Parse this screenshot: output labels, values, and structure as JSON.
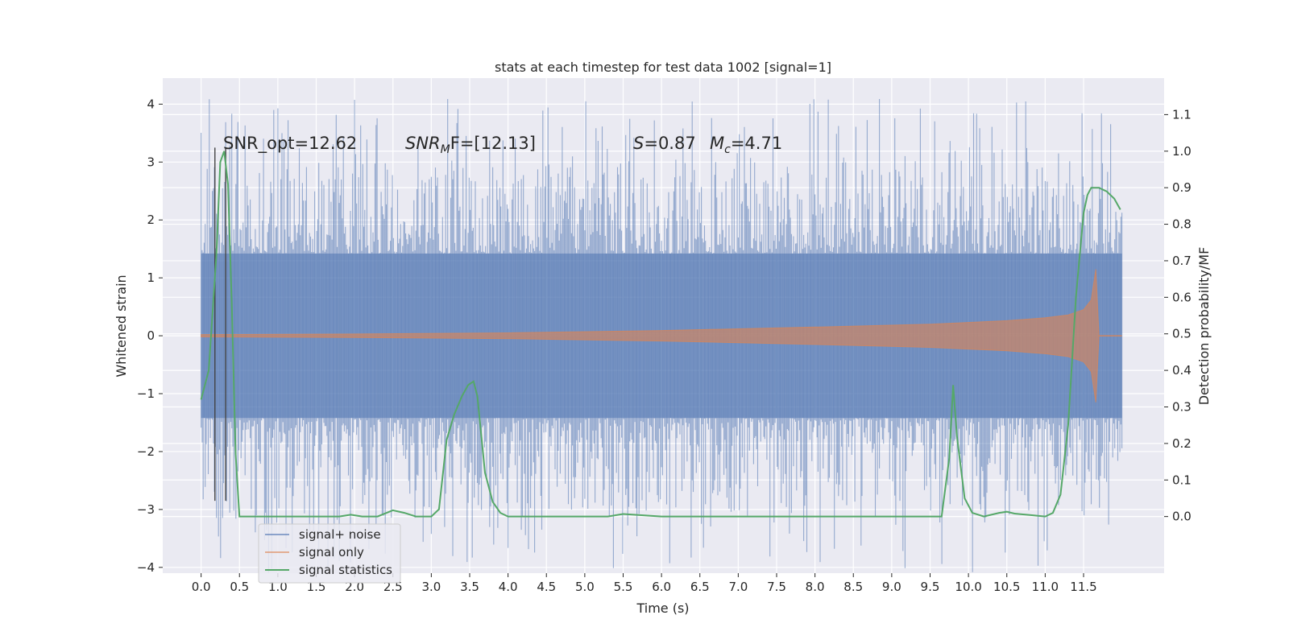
{
  "chart_data": {
    "type": "line",
    "title": "stats at each timestep for test data 1002 [signal=1]",
    "xlabel": "Time (s)",
    "ylabel": "Whitened strain",
    "y2label": "Detection probability/MF",
    "xlim": [
      -0.5,
      12.55
    ],
    "ylim": [
      -4.1,
      4.45
    ],
    "y2lim": [
      -0.155,
      1.2
    ],
    "x_ticks": [
      0.0,
      0.5,
      1.0,
      1.5,
      2.0,
      2.5,
      3.0,
      3.5,
      4.0,
      4.5,
      5.0,
      5.5,
      6.0,
      6.5,
      7.0,
      7.5,
      8.0,
      8.5,
      9.0,
      9.5,
      10.0,
      10.5,
      11.0,
      11.5
    ],
    "x_tick_labels": [
      "0.0",
      "0.5",
      "1.0",
      "1.5",
      "2.0",
      "2.5",
      "3.0",
      "3.5",
      "4.0",
      "4.5",
      "5.0",
      "5.5",
      "6.0",
      "6.5",
      "7.0",
      "7.5",
      "8.0",
      "8.5",
      "9.0",
      "9.5",
      "10.0",
      "10.5",
      "11.0",
      "11.5"
    ],
    "y_ticks": [
      -4,
      -3,
      -2,
      -1,
      0,
      1,
      2,
      3,
      4
    ],
    "y_tick_labels": [
      "−4",
      "−3",
      "−2",
      "−1",
      "0",
      "1",
      "2",
      "3",
      "4"
    ],
    "y2_ticks": [
      0.0,
      0.1,
      0.2,
      0.3,
      0.4,
      0.5,
      0.6,
      0.7,
      0.8,
      0.9,
      1.0,
      1.1
    ],
    "y2_tick_labels": [
      "0.0",
      "0.1",
      "0.2",
      "0.3",
      "0.4",
      "0.5",
      "0.6",
      "0.7",
      "0.8",
      "0.9",
      "1.0",
      "1.1"
    ],
    "grid": true,
    "legend_position": "lower-left",
    "annotations": {
      "snr_opt": "SNR_opt=12.62",
      "snr_mf_main": "SNR",
      "snr_mf_sub": "M",
      "snr_mf_rest": "F=[12.13]",
      "s_main": "S",
      "s_rest": "=0.87",
      "mc_main": "M",
      "mc_sub": "c",
      "mc_rest": "=4.71"
    },
    "vertical_lines_x": [
      0.18,
      0.32
    ],
    "series": [
      {
        "name": "signal+ noise",
        "color": "#4c72b0",
        "style": "band",
        "x_range": [
          0.0,
          12.0
        ],
        "core_amplitude": 1.42,
        "peak_amplitude": 4.1
      },
      {
        "name": "signal only",
        "color": "#dd8452",
        "style": "chirp",
        "x_range": [
          0.0,
          12.0
        ],
        "envelope_x": [
          0.0,
          2.0,
          4.0,
          6.0,
          8.0,
          9.5,
          10.5,
          11.0,
          11.3,
          11.5,
          11.6,
          11.66,
          11.7
        ],
        "envelope_y": [
          0.02,
          0.03,
          0.05,
          0.09,
          0.15,
          0.2,
          0.26,
          0.31,
          0.36,
          0.45,
          0.62,
          1.15,
          0.05
        ]
      },
      {
        "name": "signal statistics",
        "color": "#55a868",
        "style": "line",
        "x": [
          0.0,
          0.1,
          0.2,
          0.25,
          0.3,
          0.35,
          0.4,
          0.45,
          0.5,
          0.55,
          0.6,
          1.0,
          1.5,
          1.8,
          1.95,
          2.1,
          2.3,
          2.5,
          2.65,
          2.8,
          3.0,
          3.1,
          3.2,
          3.3,
          3.4,
          3.48,
          3.55,
          3.6,
          3.7,
          3.8,
          3.9,
          4.0,
          4.5,
          5.0,
          5.3,
          5.5,
          6.0,
          7.0,
          8.0,
          9.0,
          9.5,
          9.65,
          9.75,
          9.8,
          9.85,
          9.95,
          10.05,
          10.2,
          10.4,
          10.5,
          10.6,
          10.8,
          11.0,
          11.1,
          11.2,
          11.3,
          11.4,
          11.5,
          11.55,
          11.6,
          11.7,
          11.8,
          11.9,
          11.98
        ],
        "y": [
          0.32,
          0.4,
          0.72,
          0.97,
          1.0,
          0.91,
          0.58,
          0.17,
          0.0,
          0.0,
          0.0,
          0.0,
          0.0,
          0.0,
          0.005,
          0.0,
          0.0,
          0.017,
          0.01,
          0.0,
          0.0,
          0.02,
          0.21,
          0.28,
          0.33,
          0.36,
          0.37,
          0.33,
          0.12,
          0.04,
          0.01,
          0.0,
          0.0,
          0.0,
          0.0,
          0.007,
          0.0,
          0.0,
          0.0,
          0.0,
          0.0,
          0.0,
          0.16,
          0.36,
          0.22,
          0.05,
          0.01,
          0.0,
          0.01,
          0.013,
          0.008,
          0.004,
          0.0,
          0.01,
          0.06,
          0.25,
          0.6,
          0.83,
          0.88,
          0.9,
          0.9,
          0.89,
          0.87,
          0.84
        ]
      }
    ]
  }
}
